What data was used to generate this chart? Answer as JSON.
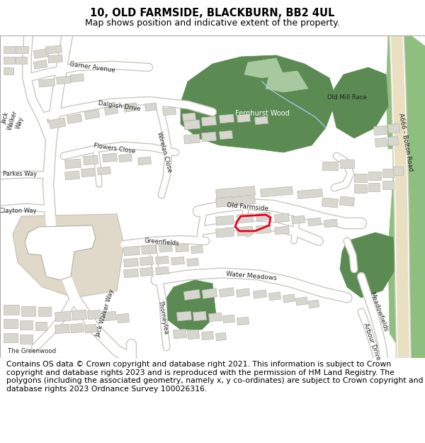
{
  "title_line1": "10, OLD FARMSIDE, BLACKBURN, BB2 4UL",
  "title_line2": "Map shows position and indicative extent of the property.",
  "footer_text": "Contains OS data © Crown copyright and database right 2021. This information is subject to Crown copyright and database rights 2023 and is reproduced with the permission of HM Land Registry. The polygons (including the associated geometry, namely x, y co-ordinates) are subject to Crown copyright and database rights 2023 Ordnance Survey 100026316.",
  "title_fontsize": 10.5,
  "subtitle_fontsize": 9.0,
  "footer_fontsize": 7.8,
  "bg_color": "#ffffff",
  "map_bg": "#f2f0eb",
  "road_fill": "#ffffff",
  "road_edge": "#c8c8c0",
  "building_fill": "#d8d7cf",
  "building_edge": "#b8b8b0",
  "green_dark": "#5b8a52",
  "green_light": "#8fbf7f",
  "a666_fill": "#e8f0e0",
  "highlight_red": "#e8001c",
  "tan_area": "#e0d8c8",
  "water_blue": "#a8d4f0"
}
